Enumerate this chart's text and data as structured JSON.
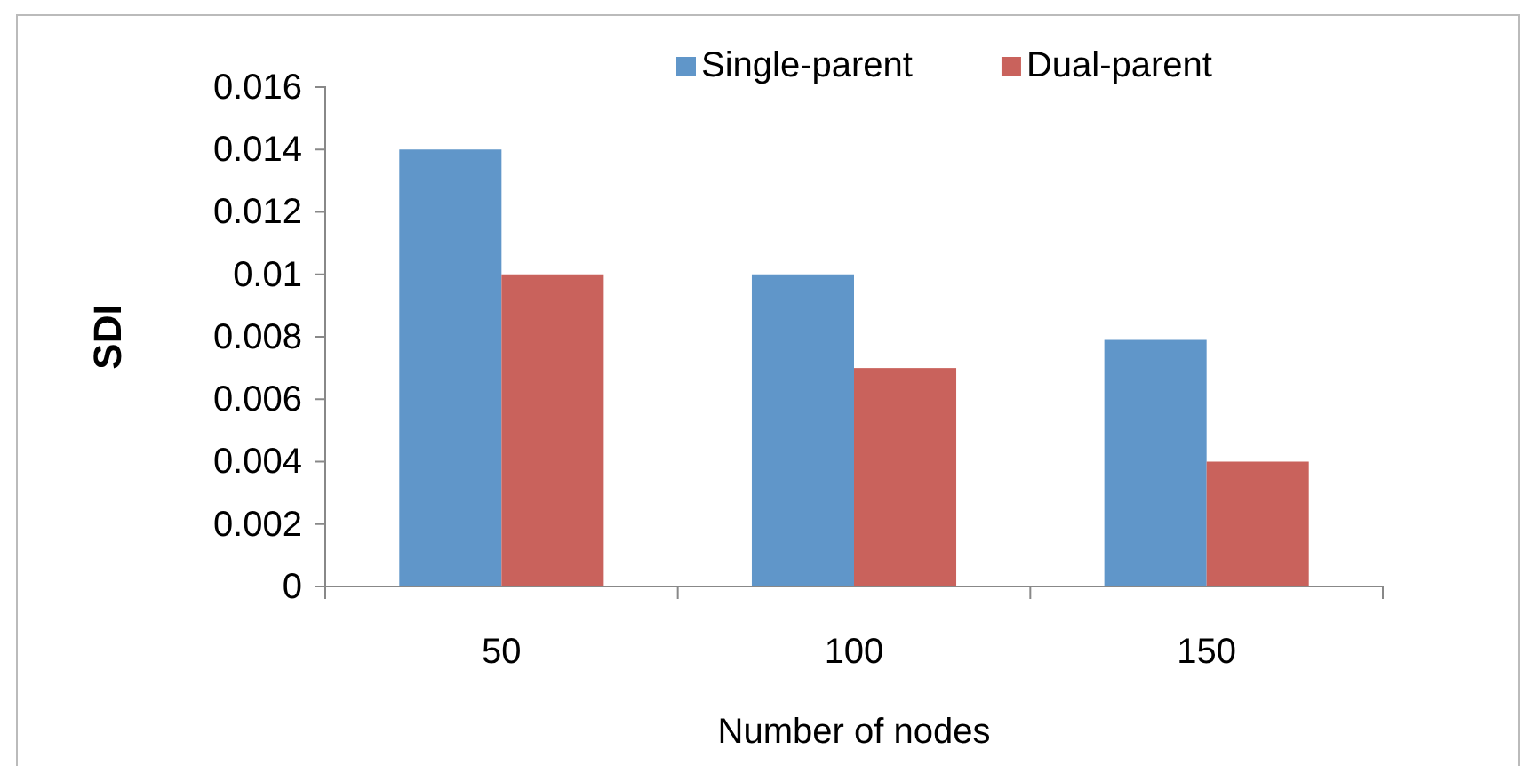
{
  "chart_data": {
    "type": "bar",
    "xlabel": "Number of nodes",
    "ylabel": "SDI",
    "categories": [
      "50",
      "100",
      "150"
    ],
    "series": [
      {
        "name": "Single-parent",
        "color": "#6096c9",
        "values": [
          0.014,
          0.01,
          0.0079
        ]
      },
      {
        "name": "Dual-parent",
        "color": "#c9625c",
        "values": [
          0.01,
          0.007,
          0.004
        ]
      }
    ],
    "ylim": [
      0,
      0.016
    ],
    "yticks": [
      0,
      0.002,
      0.004,
      0.006,
      0.008,
      0.01,
      0.012,
      0.014,
      0.016
    ],
    "legend": "top",
    "grid": false
  }
}
